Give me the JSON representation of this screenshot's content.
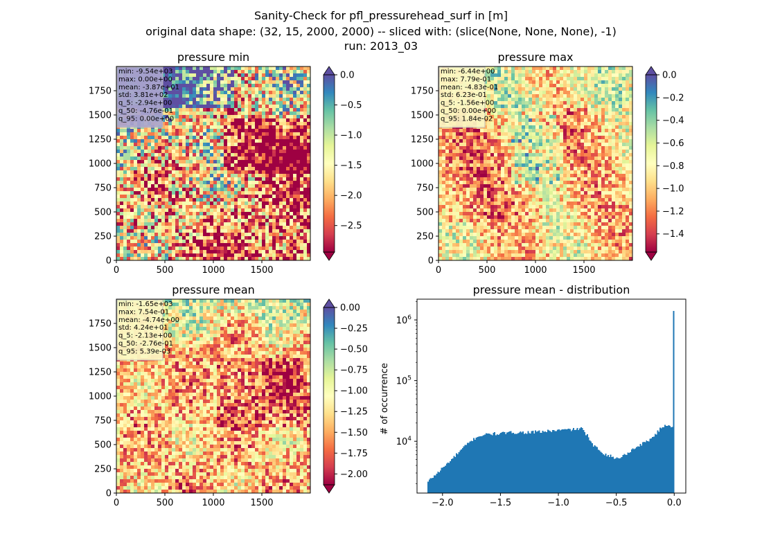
{
  "figure": {
    "title_lines": [
      "Sanity-Check for pfl_pressurehead_surf in [m]",
      "original data shape: (32, 15, 2000, 2000) -- sliced with: (slice(None, None, None), -1)",
      "run: 2013_03"
    ]
  },
  "chart_data": [
    {
      "type": "heatmap",
      "title": "pressure min",
      "colormap": "Spectral",
      "xlim": [
        0,
        2000
      ],
      "ylim": [
        0,
        2000
      ],
      "xticks": [
        0,
        500,
        1000,
        1500
      ],
      "yticks": [
        0,
        250,
        500,
        750,
        1000,
        1250,
        1500,
        1750
      ],
      "colorbar": {
        "vmin": -2.94,
        "vmax": 0.0,
        "ticks": [
          "0.0",
          "-0.5",
          "-1.0",
          "-1.5",
          "-2.0",
          "-2.5"
        ],
        "tick_values": [
          0.0,
          -0.5,
          -1.0,
          -1.5,
          -2.0,
          -2.5
        ],
        "extend": "both"
      },
      "stats": [
        "min: -9.54e+03",
        "max: 0.00e+00",
        "mean: -3.87e+01",
        "std: 3.81e+02",
        "q_5: -2.94e+00",
        "q_50: -4.76e-01",
        "q_95: 0.00e+00"
      ],
      "stats_box_color": "#aba6cf"
    },
    {
      "type": "heatmap",
      "title": "pressure max",
      "colormap": "Spectral",
      "xlim": [
        0,
        2000
      ],
      "ylim": [
        0,
        2000
      ],
      "xticks": [
        0,
        500,
        1000,
        1500
      ],
      "yticks": [
        0,
        250,
        500,
        750,
        1000,
        1250,
        1500,
        1750
      ],
      "colorbar": {
        "vmin": -1.56,
        "vmax": 0.0,
        "ticks": [
          "0.0",
          "-0.2",
          "-0.4",
          "-0.6",
          "-0.8",
          "-1.0",
          "-1.2",
          "-1.4"
        ],
        "tick_values": [
          0.0,
          -0.2,
          -0.4,
          -0.6,
          -0.8,
          -1.0,
          -1.2,
          -1.4
        ],
        "extend": "both"
      },
      "stats": [
        "min: -6.44e+00",
        "max: 7.79e-01",
        "mean: -4.83e-01",
        "std: 6.23e-01",
        "q_5: -1.56e+00",
        "q_50: 0.00e+00",
        "q_95: 1.84e-02"
      ],
      "stats_box_color": "#fbf8c4"
    },
    {
      "type": "heatmap",
      "title": "pressure mean",
      "colormap": "Spectral",
      "xlim": [
        0,
        2000
      ],
      "ylim": [
        0,
        2000
      ],
      "xticks": [
        0,
        500,
        1000,
        1500
      ],
      "yticks": [
        0,
        250,
        500,
        750,
        1000,
        1250,
        1500,
        1750
      ],
      "colorbar": {
        "vmin": -2.13,
        "vmax": 0.0,
        "ticks": [
          "0.00",
          "-0.25",
          "-0.50",
          "-0.75",
          "-1.00",
          "-1.25",
          "-1.50",
          "-1.75",
          "-2.00"
        ],
        "tick_values": [
          0.0,
          -0.25,
          -0.5,
          -0.75,
          -1.0,
          -1.25,
          -1.5,
          -1.75,
          -2.0
        ],
        "extend": "both"
      },
      "stats": [
        "min: -1.65e+03",
        "max: 7.54e-01",
        "mean: -4.74e+00",
        "std: 4.24e+01",
        "q_5: -2.13e+00",
        "q_50: -2.76e-01",
        "q_95: 5.39e-03"
      ],
      "stats_box_color": "#fbf8c4"
    },
    {
      "type": "bar",
      "title": "pressure mean - distribution",
      "ylabel": "# of occurrence",
      "yscale": "log",
      "xlim": [
        -2.22,
        0.1
      ],
      "ylim": [
        1400,
        2200000
      ],
      "xticks": [
        -2.0,
        -1.5,
        -1.0,
        -0.5,
        0.0
      ],
      "xtick_labels": [
        "−2.0",
        "−1.5",
        "−1.0",
        "−0.5",
        "0.0"
      ],
      "yticks": [
        10000,
        100000,
        1000000
      ],
      "ytick_labels": [
        "10^4",
        "10^5",
        "10^6"
      ],
      "bar_color": "#1f77b4",
      "bins": {
        "start": -2.13,
        "end": 0.0,
        "count": 200
      },
      "profile_x": [
        -2.13,
        -2.1,
        -2.0,
        -1.9,
        -1.8,
        -1.7,
        -1.6,
        -1.5,
        -1.4,
        -1.3,
        -1.2,
        -1.1,
        -1.0,
        -0.9,
        -0.8,
        -0.75,
        -0.72,
        -0.7,
        -0.6,
        -0.5,
        -0.45,
        -0.4,
        -0.3,
        -0.2,
        -0.1,
        -0.05,
        -0.015,
        -0.01,
        0.0
      ],
      "profile_y": [
        2100,
        2400,
        3600,
        5500,
        8500,
        12000,
        13200,
        13400,
        14000,
        14000,
        14200,
        14600,
        15200,
        15600,
        16200,
        12500,
        9500,
        8600,
        6200,
        5200,
        5600,
        6500,
        8600,
        11000,
        17500,
        19000,
        17000,
        20000,
        1400000
      ]
    }
  ]
}
